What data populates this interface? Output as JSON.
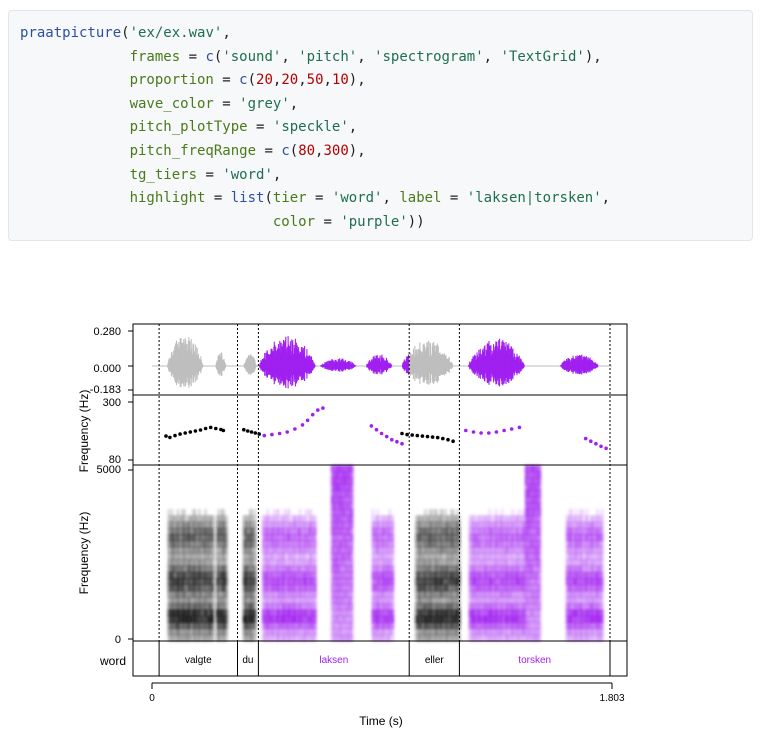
{
  "code": {
    "lines": [
      [
        [
          "fn",
          "praatpicture"
        ],
        [
          "punc",
          "("
        ],
        [
          "str",
          "'ex/ex.wav'"
        ],
        [
          "punc",
          ","
        ]
      ],
      [
        [
          "ind",
          "             "
        ],
        [
          "arg",
          "frames"
        ],
        [
          "punc",
          " = "
        ],
        [
          "fn",
          "c"
        ],
        [
          "punc",
          "("
        ],
        [
          "str",
          "'sound'"
        ],
        [
          "punc",
          ", "
        ],
        [
          "str",
          "'pitch'"
        ],
        [
          "punc",
          ", "
        ],
        [
          "str",
          "'spectrogram'"
        ],
        [
          "punc",
          ", "
        ],
        [
          "str",
          "'TextGrid'"
        ],
        [
          "punc",
          "),"
        ]
      ],
      [
        [
          "ind",
          "             "
        ],
        [
          "arg",
          "proportion"
        ],
        [
          "punc",
          " = "
        ],
        [
          "fn",
          "c"
        ],
        [
          "punc",
          "("
        ],
        [
          "num",
          "20"
        ],
        [
          "punc",
          ","
        ],
        [
          "num",
          "20"
        ],
        [
          "punc",
          ","
        ],
        [
          "num",
          "50"
        ],
        [
          "punc",
          ","
        ],
        [
          "num",
          "10"
        ],
        [
          "punc",
          "),"
        ]
      ],
      [
        [
          "ind",
          "             "
        ],
        [
          "arg",
          "wave_color"
        ],
        [
          "punc",
          " = "
        ],
        [
          "str",
          "'grey'"
        ],
        [
          "punc",
          ","
        ]
      ],
      [
        [
          "ind",
          "             "
        ],
        [
          "arg",
          "pitch_plotType"
        ],
        [
          "punc",
          " = "
        ],
        [
          "str",
          "'speckle'"
        ],
        [
          "punc",
          ","
        ]
      ],
      [
        [
          "ind",
          "             "
        ],
        [
          "arg",
          "pitch_freqRange"
        ],
        [
          "punc",
          " = "
        ],
        [
          "fn",
          "c"
        ],
        [
          "punc",
          "("
        ],
        [
          "num",
          "80"
        ],
        [
          "punc",
          ","
        ],
        [
          "num",
          "300"
        ],
        [
          "punc",
          "),"
        ]
      ],
      [
        [
          "ind",
          "             "
        ],
        [
          "arg",
          "tg_tiers"
        ],
        [
          "punc",
          " = "
        ],
        [
          "str",
          "'word'"
        ],
        [
          "punc",
          ","
        ]
      ],
      [
        [
          "ind",
          "             "
        ],
        [
          "arg",
          "highlight"
        ],
        [
          "punc",
          " = "
        ],
        [
          "fn",
          "list"
        ],
        [
          "punc",
          "("
        ],
        [
          "arg",
          "tier"
        ],
        [
          "punc",
          " = "
        ],
        [
          "str",
          "'word'"
        ],
        [
          "punc",
          ", "
        ],
        [
          "arg",
          "label"
        ],
        [
          "punc",
          " = "
        ],
        [
          "str",
          "'laksen|torsken'"
        ],
        [
          "punc",
          ","
        ]
      ],
      [
        [
          "ind",
          "                              "
        ],
        [
          "arg",
          "color"
        ],
        [
          "punc",
          " = "
        ],
        [
          "str",
          "'purple'"
        ],
        [
          "punc",
          "))"
        ]
      ]
    ]
  },
  "figure": {
    "colors": {
      "highlight": "#a020f0",
      "wave": "#bebebe",
      "pitch": "#000000",
      "axis": "#000000"
    },
    "sound_panel": {
      "ticks": [
        "0.280",
        "0.000",
        "-0.183"
      ]
    },
    "pitch_panel": {
      "ylabel": "Frequency (Hz)",
      "ticks": [
        "300",
        "80"
      ],
      "freq_range": [
        80,
        300
      ],
      "tracks": [
        {
          "highlight": false,
          "t": [
            0.055,
            0.07,
            0.09,
            0.11,
            0.13,
            0.15,
            0.17,
            0.19,
            0.21,
            0.23,
            0.25,
            0.27,
            0.28
          ],
          "f": [
            170,
            165,
            172,
            178,
            182,
            186,
            190,
            194,
            200,
            204,
            200,
            196,
            192
          ]
        },
        {
          "highlight": false,
          "t": [
            0.36,
            0.375,
            0.39,
            0.405,
            0.42
          ],
          "f": [
            195,
            190,
            186,
            182,
            178
          ]
        },
        {
          "highlight": true,
          "t": [
            0.44,
            0.47,
            0.5,
            0.53,
            0.56,
            0.59,
            0.61,
            0.63,
            0.65,
            0.67
          ],
          "f": [
            172,
            176,
            180,
            186,
            198,
            214,
            232,
            254,
            272,
            280
          ]
        },
        {
          "highlight": true,
          "t": [
            0.86,
            0.88,
            0.9,
            0.92,
            0.94,
            0.96,
            0.98
          ],
          "f": [
            210,
            195,
            180,
            168,
            156,
            148,
            140
          ]
        },
        {
          "highlight": false,
          "t": [
            0.98,
            1.0,
            1.02,
            1.04,
            1.06,
            1.08,
            1.1,
            1.12,
            1.14,
            1.16,
            1.18
          ],
          "f": [
            180,
            176,
            174,
            172,
            170,
            168,
            166,
            164,
            160,
            156,
            150
          ]
        },
        {
          "highlight": true,
          "t": [
            1.23,
            1.26,
            1.29,
            1.32,
            1.35,
            1.38,
            1.41,
            1.44
          ],
          "f": [
            192,
            186,
            182,
            182,
            186,
            192,
            198,
            204
          ]
        },
        {
          "highlight": true,
          "t": [
            1.7,
            1.72,
            1.74,
            1.76,
            1.78
          ],
          "f": [
            160,
            150,
            140,
            130,
            122
          ]
        }
      ]
    },
    "spectrogram_panel": {
      "ylabel": "Frequency (Hz)",
      "ticks": [
        "5000",
        "0"
      ]
    },
    "textgrid": {
      "tier_name": "word",
      "boundaries": [
        0.028,
        0.335,
        0.417,
        1.008,
        1.205,
        1.795
      ],
      "words": [
        {
          "label": "valgte",
          "start": 0.028,
          "end": 0.335,
          "highlight": false
        },
        {
          "label": "du",
          "start": 0.335,
          "end": 0.417,
          "highlight": false
        },
        {
          "label": "laksen",
          "start": 0.417,
          "end": 1.008,
          "highlight": true
        },
        {
          "label": "eller",
          "start": 1.008,
          "end": 1.205,
          "highlight": false
        },
        {
          "label": "torsken",
          "start": 1.205,
          "end": 1.795,
          "highlight": true
        }
      ]
    },
    "time_axis": {
      "xlabel": "Time (s)",
      "start_label": "0",
      "end_label": "1.803",
      "range": [
        0,
        1.803
      ]
    }
  }
}
